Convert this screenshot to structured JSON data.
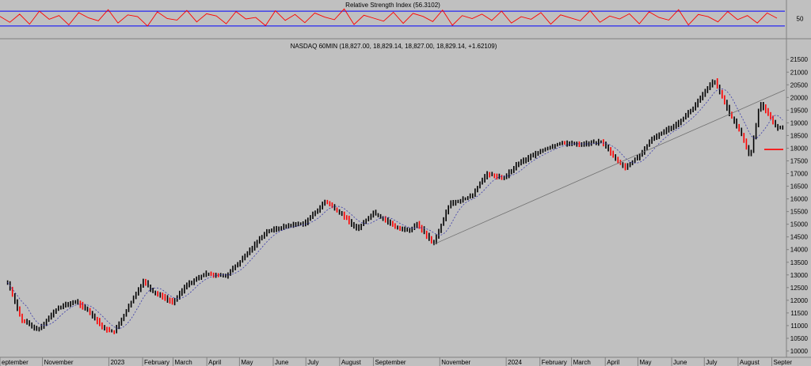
{
  "chart_data": [
    {
      "type": "line",
      "title": "Relative Strength Index (56.3102)",
      "ylim": [
        0,
        100
      ],
      "reference_lines": [
        70,
        30
      ],
      "y_ticks": [
        "50"
      ],
      "colors": {
        "line": "#ff0000",
        "reference": "#0000ff"
      },
      "values": [
        56,
        40,
        62,
        35,
        70,
        48,
        58,
        33,
        66,
        52,
        44,
        74,
        38,
        60,
        55,
        30,
        68,
        50,
        46,
        72,
        41,
        63,
        57,
        36,
        69,
        49,
        53,
        31,
        71,
        45,
        61,
        39,
        65,
        54,
        47,
        76,
        34,
        59,
        51,
        43,
        67,
        37,
        64,
        56,
        42,
        73,
        32,
        58,
        50,
        62,
        45,
        70,
        38,
        55,
        48,
        66,
        35,
        60,
        52,
        44,
        71,
        40,
        57,
        49,
        63,
        36,
        68,
        53,
        46,
        74,
        33,
        61,
        55,
        41,
        69,
        47,
        58,
        38,
        65,
        51
      ]
    },
    {
      "type": "line",
      "title": "NASDAQ 60MIN (18,827.00, 18,829.14, 18,827.00, 18,829.14, +1.62109)",
      "ylim": [
        9750,
        21850
      ],
      "y_ticks": [
        "10000",
        "10500",
        "11000",
        "11500",
        "12000",
        "12500",
        "13000",
        "13500",
        "14000",
        "14500",
        "15000",
        "15500",
        "16000",
        "16500",
        "17000",
        "17500",
        "18000",
        "18500",
        "19000",
        "19500",
        "20000",
        "20500",
        "21000",
        "21500"
      ],
      "x_labels": [
        "eptember",
        "November",
        "2023",
        "February",
        "March",
        "April",
        "May",
        "June",
        "July",
        "August",
        "September",
        "November",
        "2024",
        "February",
        "March",
        "April",
        "May",
        "June",
        "July",
        "August",
        "Septer"
      ],
      "x": [
        "2022-09-30",
        "2022-10-13",
        "2022-10-28",
        "2022-11-15",
        "2022-12-01",
        "2022-12-13",
        "2022-12-28",
        "2023-01-06",
        "2023-02-02",
        "2023-02-10",
        "2023-03-01",
        "2023-03-13",
        "2023-03-31",
        "2023-04-18",
        "2023-05-01",
        "2023-05-25",
        "2023-06-15",
        "2023-06-30",
        "2023-07-19",
        "2023-08-03",
        "2023-08-17",
        "2023-09-01",
        "2023-09-21",
        "2023-10-04",
        "2023-10-11",
        "2023-10-26",
        "2023-11-10",
        "2023-11-30",
        "2023-12-14",
        "2023-12-29",
        "2024-01-12",
        "2024-02-02",
        "2024-02-20",
        "2024-03-08",
        "2024-03-28",
        "2024-04-19",
        "2024-05-02",
        "2024-05-15",
        "2024-06-07",
        "2024-06-20",
        "2024-07-10",
        "2024-07-25",
        "2024-08-05",
        "2024-08-12",
        "2024-08-21",
        "2024-09-06",
        "2024-09-11"
      ],
      "values": [
        12700,
        11200,
        10850,
        11700,
        11950,
        11600,
        10850,
        10750,
        12800,
        12350,
        11900,
        12600,
        13050,
        12950,
        13500,
        14700,
        14950,
        15050,
        15900,
        15400,
        14800,
        15450,
        14900,
        14750,
        15050,
        14200,
        15800,
        16100,
        17000,
        16800,
        17400,
        17900,
        18200,
        18150,
        18250,
        17200,
        17700,
        18400,
        19000,
        19550,
        20700,
        19300,
        18500,
        17600,
        19800,
        18800,
        18830
      ],
      "trendline": {
        "from": [
          "2023-10-26",
          14200
        ],
        "to": [
          "2024-09-13",
          20300
        ]
      },
      "marker_level": 17950,
      "colors": {
        "bars": "#000000",
        "down_bars": "#ff0000",
        "trendline": "#707070",
        "average": "#3a3aaa",
        "marker": "#ff0000"
      }
    }
  ]
}
